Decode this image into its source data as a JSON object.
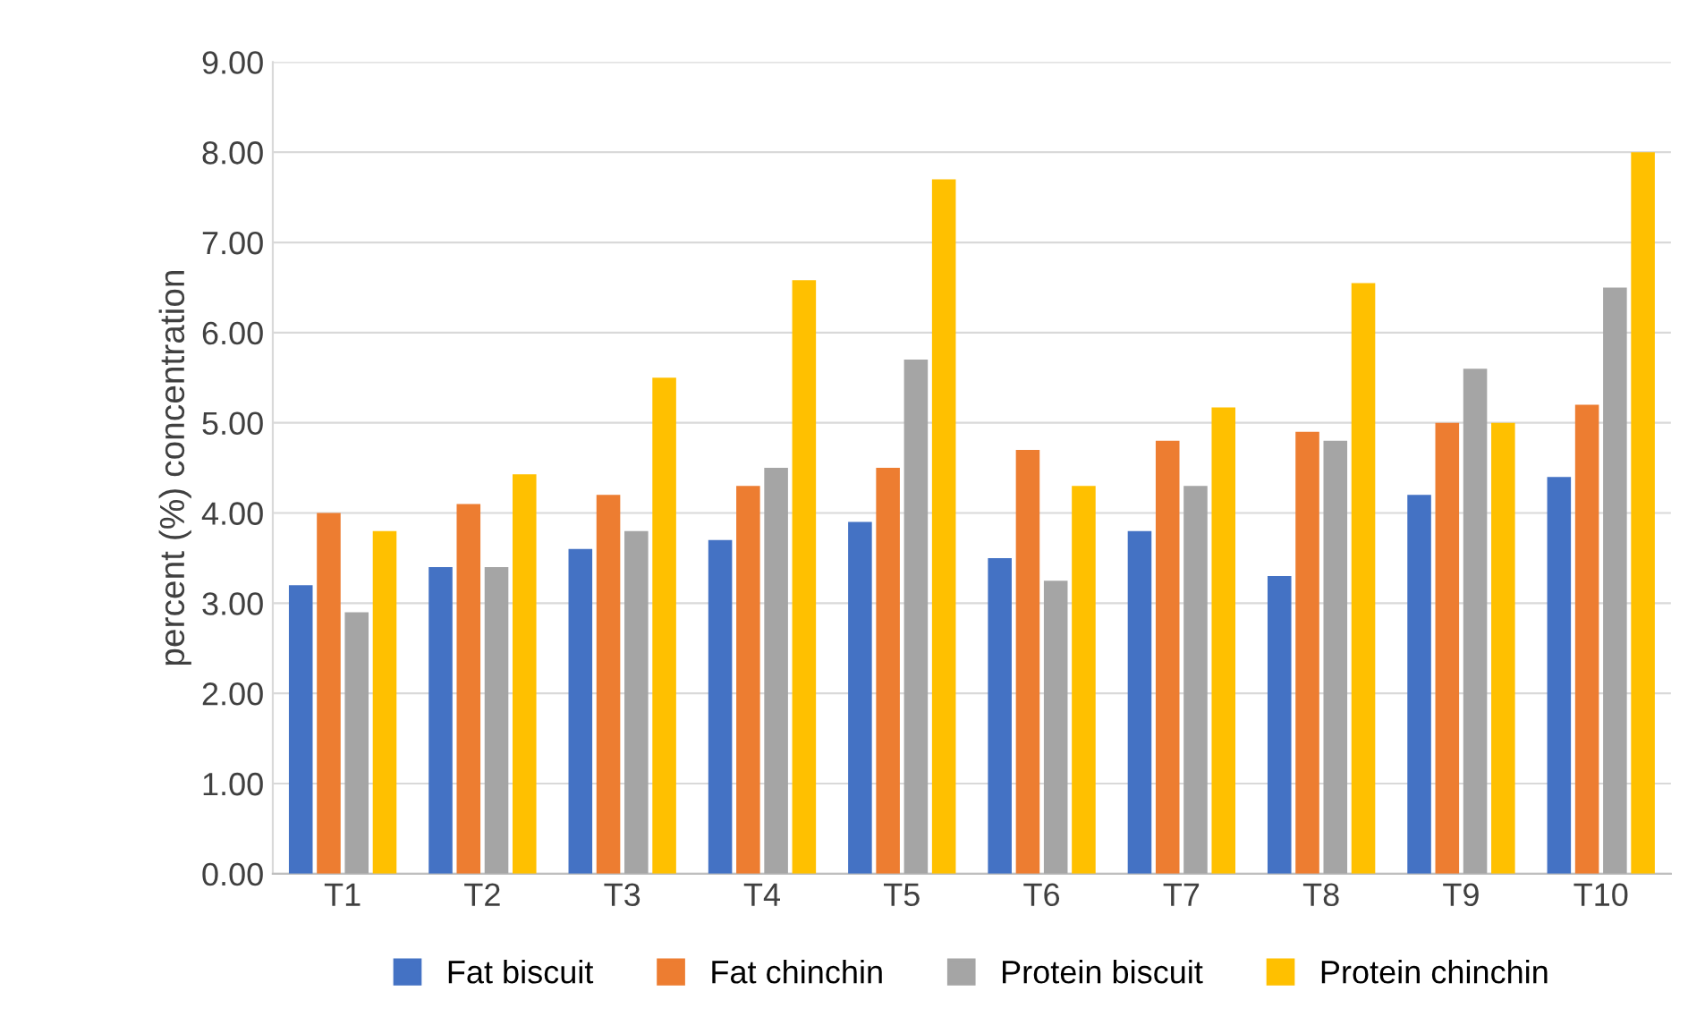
{
  "chart_data": {
    "type": "bar",
    "ylabel": "percent (%) concentration",
    "categories": [
      "T1",
      "T2",
      "T3",
      "T4",
      "T5",
      "T6",
      "T7",
      "T8",
      "T9",
      "T10"
    ],
    "series": [
      {
        "name": "Fat biscuit",
        "color": "#4472c4",
        "values": [
          3.2,
          3.4,
          3.6,
          3.7,
          3.9,
          3.5,
          3.8,
          3.3,
          4.2,
          4.4
        ]
      },
      {
        "name": "Fat chinchin",
        "color": "#ed7d31",
        "values": [
          4.0,
          4.1,
          4.2,
          4.3,
          4.5,
          4.7,
          4.8,
          4.9,
          5.0,
          5.2
        ]
      },
      {
        "name": "Protein biscuit",
        "color": "#a5a5a5",
        "values": [
          2.9,
          3.4,
          3.8,
          4.5,
          5.7,
          3.25,
          4.3,
          4.8,
          5.6,
          6.5
        ]
      },
      {
        "name": "Protein chinchin",
        "color": "#ffc000",
        "values": [
          3.8,
          4.43,
          5.5,
          6.58,
          7.7,
          4.3,
          5.17,
          6.55,
          5.0,
          8.0
        ]
      }
    ],
    "ylim": [
      0,
      9
    ],
    "yticks": [
      {
        "value": 0,
        "label": "0.00"
      },
      {
        "value": 1,
        "label": "1.00"
      },
      {
        "value": 2,
        "label": "2.00"
      },
      {
        "value": 3,
        "label": "3.00"
      },
      {
        "value": 4,
        "label": "4.00"
      },
      {
        "value": 5,
        "label": "5.00"
      },
      {
        "value": 6,
        "label": "6.00"
      },
      {
        "value": 7,
        "label": "7.00"
      },
      {
        "value": 8,
        "label": "8.00"
      },
      {
        "value": 9,
        "label": "9.00"
      }
    ],
    "grid": "y",
    "legend": "bottom"
  }
}
